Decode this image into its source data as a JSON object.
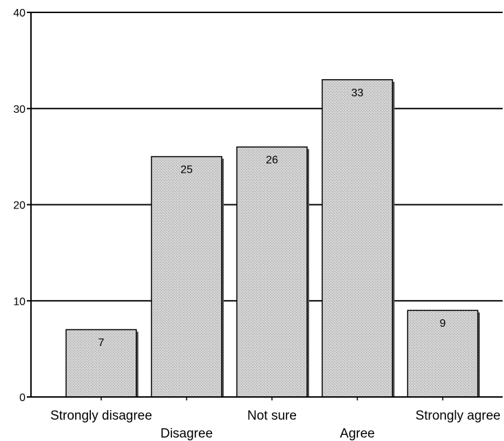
{
  "chart_data": {
    "type": "bar",
    "categories": [
      "Strongly disagree",
      "Disagree",
      "Not sure",
      "Agree",
      "Strongly agree"
    ],
    "values": [
      7,
      25,
      26,
      33,
      9
    ],
    "data_labels": [
      "7",
      "25",
      "26",
      "33",
      "9"
    ],
    "title": "",
    "xlabel": "",
    "ylabel": "",
    "ylim": [
      0,
      40
    ],
    "yticks": [
      0,
      10,
      20,
      30,
      40
    ],
    "ytick_labels": [
      "0",
      "10",
      "20",
      "30",
      "40"
    ],
    "grid": true,
    "legend": "none",
    "colors": {
      "bar_fill": "#c8c8c8",
      "bar_stroke": "#000000",
      "grid": "#000000",
      "background": "#ffffff"
    }
  }
}
